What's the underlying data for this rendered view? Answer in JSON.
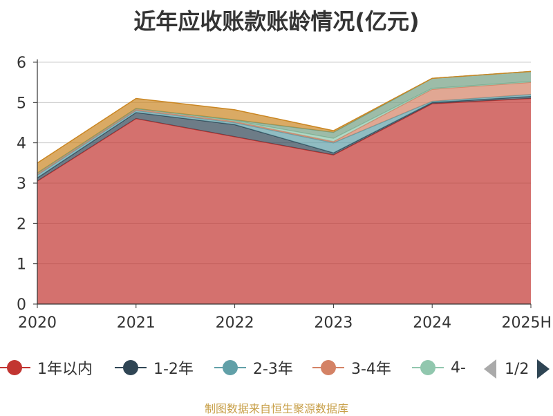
{
  "title": "近年应收账款账龄情况(亿元)",
  "source": "制图数据来自恒生聚源数据库",
  "pager": {
    "text": "1/2"
  },
  "chart_data": {
    "type": "area",
    "stacked": true,
    "title": "近年应收账款账龄情况(亿元)",
    "categories": [
      "2020",
      "2021",
      "2022",
      "2023",
      "2024",
      "2025H"
    ],
    "ylim": [
      0,
      6
    ],
    "yticks": [
      "0",
      "1",
      "2",
      "3",
      "4",
      "5",
      "6"
    ],
    "grid": true,
    "legend_position": "bottom",
    "series": [
      {
        "name": "1年以内",
        "color": "#c23531",
        "values": [
          3.05,
          4.6,
          4.15,
          3.7,
          4.97,
          5.1
        ]
      },
      {
        "name": "1-2年",
        "color": "#2f4554",
        "values": [
          0.08,
          0.15,
          0.3,
          0.05,
          0.03,
          0.05
        ]
      },
      {
        "name": "2-3年",
        "color": "#61a0a8",
        "values": [
          0.07,
          0.05,
          0.05,
          0.25,
          0.03,
          0.05
        ]
      },
      {
        "name": "3-4年",
        "color": "#d48265",
        "values": [
          0.03,
          0.03,
          0.03,
          0.03,
          0.3,
          0.3
        ]
      },
      {
        "name": "4-",
        "color": "#91c7ae",
        "values": [
          0.02,
          0.02,
          0.02,
          0.08,
          0.02,
          0.02
        ]
      },
      {
        "name": "",
        "color": "#749f83",
        "values": [
          0.0,
          0.0,
          0.02,
          0.15,
          0.25,
          0.25
        ]
      },
      {
        "name": "",
        "color": "#ca8622",
        "values": [
          0.25,
          0.25,
          0.25,
          0.04,
          0.0,
          0.0
        ]
      }
    ]
  }
}
